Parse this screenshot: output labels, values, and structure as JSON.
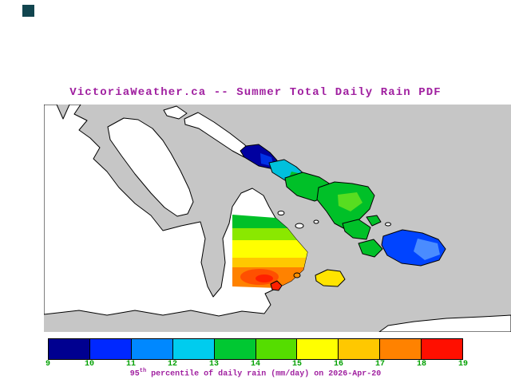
{
  "colors": {
    "heading_purple": "#a020a0",
    "logo_teal": "#11454f",
    "background": "#ffffff"
  },
  "title": "VictoriaWeather.ca -- Summer Total Daily Rain PDF",
  "caption": {
    "value": "95",
    "sup": "th",
    "rest": " percentile of daily rain (mm/day) on 2026-Apr-20"
  },
  "colorbar": {
    "tick_labels": [
      "9",
      "10",
      "11",
      "12",
      "13",
      "14",
      "15",
      "16",
      "17",
      "18",
      "19"
    ],
    "segment_colors": [
      "#000090",
      "#0028ff",
      "#0088ff",
      "#00ccee",
      "#00c832",
      "#55dd00",
      "#ffff00",
      "#ffc800",
      "#ff8200",
      "#ff0f00"
    ],
    "label_color": "#00a000",
    "units": "mm/day"
  },
  "map": {
    "sea_color": "#c6c6c6",
    "land_color": "#ffffff",
    "coast_color": "#000000",
    "patch_colors": {
      "navy": "#0000a0",
      "blue": "#0032e6",
      "cyan": "#00c0dc",
      "green": "#00c028",
      "light_green": "#58dd20",
      "yellow": "#ffff00",
      "yellow_islet": "#ffe400",
      "yellow_green": "#8ae800",
      "gold": "#ffc800",
      "orange": "#ff8200",
      "deep_orange": "#ff5000",
      "red": "#ff2000",
      "orange_speck": "#ff9000",
      "right_blue": "#0044ff",
      "right_blue_light": "#4a8cff"
    }
  },
  "chart_data": {
    "type": "heatmap",
    "title": "VictoriaWeather.ca -- Summer Total Daily Rain PDF",
    "variable": "95th percentile of daily rain",
    "units": "mm/day",
    "date": "2026-Apr-20",
    "colorbar_range": [
      9,
      19
    ],
    "colorbar_ticks": [
      9,
      10,
      11,
      12,
      13,
      14,
      15,
      16,
      17,
      18,
      19
    ],
    "regions": [
      {
        "location": "narrow island, upper middle (SE end of strip)",
        "approx_value_mm_day": 9.5
      },
      {
        "location": "island just southeast of navy strip",
        "approx_value_mm_day": 12
      },
      {
        "location": "islands center (east of peninsula tip)",
        "approx_value_mm_day": 13.5
      },
      {
        "location": "large island center-right",
        "approx_value_mm_day": 13.5
      },
      {
        "location": "small islands right of center",
        "approx_value_mm_day": 13.5
      },
      {
        "location": "peninsula north band",
        "approx_value_mm_day": 14
      },
      {
        "location": "peninsula central band",
        "approx_value_mm_day": 15.5
      },
      {
        "location": "peninsula south band",
        "approx_value_mm_day": 17
      },
      {
        "location": "peninsula southern pocket",
        "approx_value_mm_day": 18
      },
      {
        "location": "small islet south (red)",
        "approx_value_mm_day": 19
      },
      {
        "location": "small islet south-center (yellow)",
        "approx_value_mm_day": 15.5
      },
      {
        "location": "large island far right (blue)",
        "approx_value_mm_day": 10.5
      }
    ]
  }
}
